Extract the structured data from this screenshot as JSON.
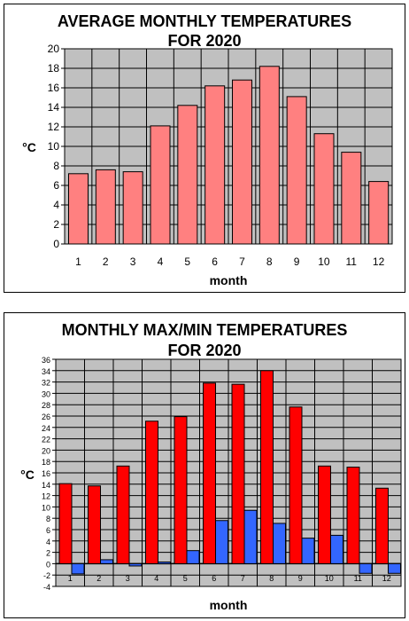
{
  "colors": {
    "plot_bg": "#c0c0c0",
    "grid": "#000000",
    "avg_bar": "#ff8080",
    "max_bar": "#ff0000",
    "min_bar": "#3366ff"
  },
  "chart_data": [
    {
      "type": "bar",
      "title_lines": [
        "AVERAGE MONTHLY TEMPERATURES",
        "FOR 2020"
      ],
      "xlabel": "month",
      "ylabel": "°C",
      "categories": [
        "1",
        "2",
        "3",
        "4",
        "5",
        "6",
        "7",
        "8",
        "9",
        "10",
        "11",
        "12"
      ],
      "values": [
        7.2,
        7.6,
        7.4,
        12.1,
        14.2,
        16.2,
        16.8,
        18.2,
        15.1,
        11.3,
        9.4,
        6.4
      ],
      "ylim": [
        0,
        20
      ],
      "ytick_step": 2,
      "yticks": [
        "0",
        "2",
        "4",
        "6",
        "8",
        "10",
        "12",
        "14",
        "16",
        "18",
        "20"
      ],
      "grid": true
    },
    {
      "type": "bar",
      "title_lines": [
        "MONTHLY MAX/MIN TEMPERATURES",
        "FOR 2020"
      ],
      "xlabel": "month",
      "ylabel": "°C",
      "categories": [
        "1",
        "2",
        "3",
        "4",
        "5",
        "6",
        "7",
        "8",
        "9",
        "10",
        "11",
        "12"
      ],
      "series": [
        {
          "values": [
            14.1,
            13.7,
            17.2,
            25.1,
            25.9,
            31.8,
            31.6,
            34.0,
            27.6,
            17.2,
            17.0,
            13.3
          ]
        },
        {
          "values": [
            -1.8,
            0.7,
            -0.4,
            0.3,
            2.3,
            7.6,
            9.4,
            7.1,
            4.5,
            5.0,
            -1.7,
            -1.7
          ]
        }
      ],
      "ylim": [
        -4,
        36
      ],
      "ytick_step": 2,
      "yticks": [
        "-4",
        "-2",
        "0",
        "2",
        "4",
        "6",
        "8",
        "10",
        "12",
        "14",
        "16",
        "18",
        "20",
        "22",
        "24",
        "26",
        "28",
        "30",
        "32",
        "34",
        "36"
      ],
      "grid": true
    }
  ]
}
